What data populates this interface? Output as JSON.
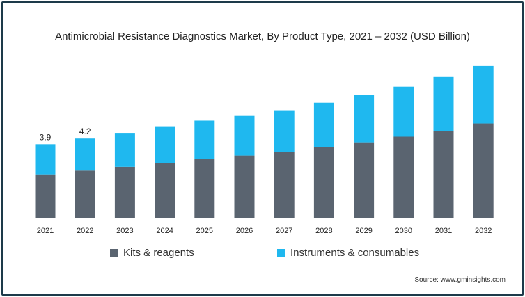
{
  "chart_data": {
    "type": "bar",
    "stacked": true,
    "title": "Antimicrobial Resistance Diagnostics Market, By Product Type, 2021 – 2032 (USD Billion)",
    "categories": [
      "2021",
      "2022",
      "2023",
      "2024",
      "2025",
      "2026",
      "2027",
      "2028",
      "2029",
      "2030",
      "2031",
      "2032"
    ],
    "series": [
      {
        "name": "Kits & reagents",
        "color": "#5a6470",
        "values": [
          2.3,
          2.5,
          2.7,
          2.9,
          3.1,
          3.3,
          3.5,
          3.75,
          4.0,
          4.3,
          4.6,
          5.0
        ]
      },
      {
        "name": "Instruments & consumables",
        "color": "#1fb8ef",
        "values": [
          1.6,
          1.7,
          1.8,
          1.95,
          2.05,
          2.1,
          2.2,
          2.35,
          2.5,
          2.65,
          2.9,
          3.05
        ]
      }
    ],
    "data_labels": [
      {
        "category": "2021",
        "text": "3.9"
      },
      {
        "category": "2022",
        "text": "4.2"
      }
    ],
    "xlabel": "",
    "ylabel": "",
    "ylim": [
      0,
      8.6
    ],
    "grid": false,
    "legend_position": "bottom"
  },
  "source": "Source: www.gminsights.com"
}
